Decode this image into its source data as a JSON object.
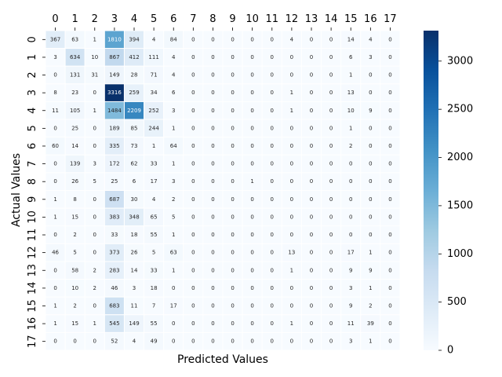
{
  "chart_data": {
    "type": "heatmap",
    "title": "",
    "xlabel": "Predicted Values",
    "ylabel": "Actual Values",
    "x_categories": [
      "0",
      "1",
      "2",
      "3",
      "4",
      "5",
      "6",
      "7",
      "8",
      "9",
      "10",
      "11",
      "12",
      "13",
      "14",
      "15",
      "16",
      "17"
    ],
    "y_categories": [
      "0",
      "1",
      "2",
      "3",
      "4",
      "5",
      "6",
      "7",
      "8",
      "9",
      "10",
      "11",
      "12",
      "13",
      "14",
      "15",
      "16",
      "17"
    ],
    "values": [
      [
        367,
        63,
        1,
        1810,
        394,
        4,
        84,
        0,
        0,
        0,
        0,
        0,
        4,
        0,
        0,
        14,
        4,
        0
      ],
      [
        3,
        634,
        10,
        867,
        412,
        111,
        4,
        0,
        0,
        0,
        0,
        0,
        0,
        0,
        0,
        6,
        3,
        0
      ],
      [
        0,
        131,
        31,
        149,
        28,
        71,
        4,
        0,
        0,
        0,
        0,
        0,
        0,
        0,
        0,
        1,
        0,
        0
      ],
      [
        8,
        23,
        0,
        3316,
        259,
        34,
        6,
        0,
        0,
        0,
        0,
        0,
        1,
        0,
        0,
        13,
        0,
        0
      ],
      [
        11,
        105,
        1,
        1484,
        2209,
        252,
        3,
        0,
        0,
        0,
        0,
        0,
        1,
        0,
        0,
        10,
        9,
        0
      ],
      [
        0,
        25,
        0,
        189,
        85,
        244,
        1,
        0,
        0,
        0,
        0,
        0,
        0,
        0,
        0,
        1,
        0,
        0
      ],
      [
        60,
        14,
        0,
        335,
        73,
        1,
        64,
        0,
        0,
        0,
        0,
        0,
        0,
        0,
        0,
        2,
        0,
        0
      ],
      [
        0,
        139,
        3,
        172,
        62,
        33,
        1,
        0,
        0,
        0,
        0,
        0,
        0,
        0,
        0,
        0,
        0,
        0
      ],
      [
        0,
        26,
        5,
        25,
        6,
        17,
        3,
        0,
        0,
        0,
        1,
        0,
        0,
        0,
        0,
        0,
        0,
        0
      ],
      [
        1,
        8,
        0,
        687,
        30,
        4,
        2,
        0,
        0,
        0,
        0,
        0,
        0,
        0,
        0,
        0,
        0,
        0
      ],
      [
        1,
        15,
        0,
        383,
        348,
        65,
        5,
        0,
        0,
        0,
        0,
        0,
        0,
        0,
        0,
        0,
        0,
        0
      ],
      [
        0,
        2,
        0,
        33,
        18,
        55,
        1,
        0,
        0,
        0,
        0,
        0,
        0,
        0,
        0,
        0,
        0,
        0
      ],
      [
        46,
        5,
        0,
        373,
        26,
        5,
        63,
        0,
        0,
        0,
        0,
        0,
        13,
        0,
        0,
        17,
        1,
        0
      ],
      [
        0,
        58,
        2,
        283,
        14,
        33,
        1,
        0,
        0,
        0,
        0,
        0,
        1,
        0,
        0,
        9,
        9,
        0
      ],
      [
        0,
        10,
        2,
        46,
        3,
        18,
        0,
        0,
        0,
        0,
        0,
        0,
        0,
        0,
        0,
        3,
        1,
        0
      ],
      [
        1,
        2,
        0,
        683,
        11,
        7,
        17,
        0,
        0,
        0,
        0,
        0,
        0,
        0,
        0,
        9,
        2,
        0
      ],
      [
        1,
        15,
        1,
        545,
        149,
        55,
        0,
        0,
        0,
        0,
        0,
        0,
        1,
        0,
        0,
        11,
        39,
        0
      ],
      [
        0,
        0,
        0,
        52,
        4,
        49,
        0,
        0,
        0,
        0,
        0,
        0,
        0,
        0,
        0,
        3,
        1,
        0
      ]
    ],
    "value_range": [
      0,
      3316
    ],
    "colormap": "Blues",
    "colormap_stops": [
      "#f7fbff",
      "#deebf7",
      "#c6dbef",
      "#9ecae1",
      "#6baed6",
      "#4292c6",
      "#2171b5",
      "#08519c",
      "#08306b"
    ],
    "colorbar_ticks": [
      0,
      500,
      1000,
      1500,
      2000,
      2500,
      3000
    ],
    "x_ticks_position": "top",
    "cell_annotations": true,
    "cell_border_color": "#ffffff"
  }
}
